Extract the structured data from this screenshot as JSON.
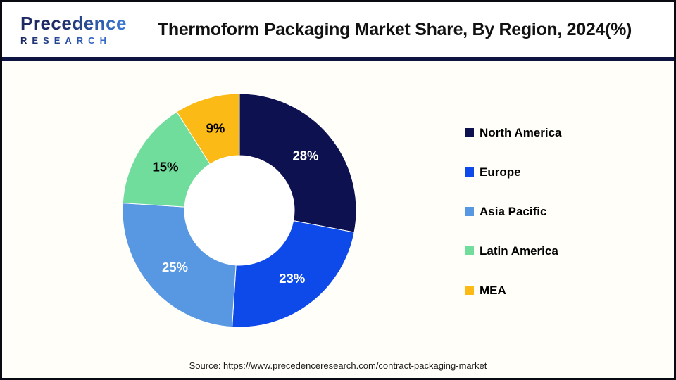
{
  "header": {
    "logo_line1": "Precedence",
    "logo_line2": "RESEARCH",
    "title": "Thermoform Packaging Market Share, By Region, 2024(%)"
  },
  "chart_data": {
    "type": "pie",
    "subtype": "donut",
    "title": "Thermoform Packaging Market Share, By Region, 2024(%)",
    "unit": "%",
    "categories": [
      "North America",
      "Europe",
      "Asia Pacific",
      "Latin America",
      "MEA"
    ],
    "values": [
      28,
      23,
      25,
      15,
      9
    ],
    "labels": [
      "28%",
      "23%",
      "25%",
      "15%",
      "9%"
    ],
    "colors": [
      "#0d1150",
      "#0d4ae9",
      "#5898e3",
      "#70dd9d",
      "#fbba16"
    ],
    "label_colors": [
      "#ffffff",
      "#ffffff",
      "#ffffff",
      "#000000",
      "#000000"
    ],
    "start_angle_deg": 0,
    "direction": "clockwise",
    "donut_hole_ratio": 0.47,
    "legend_position": "right",
    "divider_color": "#0e1442"
  },
  "footer": {
    "source": "Source: https://www.precedenceresearch.com/contract-packaging-market"
  }
}
